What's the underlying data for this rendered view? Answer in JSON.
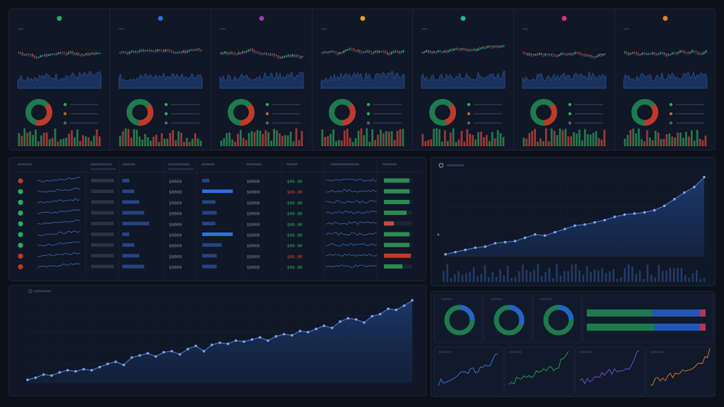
{
  "top_cards": [
    {
      "dot": "#27ae60"
    },
    {
      "dot": "#2f6fd6"
    },
    {
      "dot": "#8e44ad"
    },
    {
      "dot": "#e0a020"
    },
    {
      "dot": "#1abc9c"
    },
    {
      "dot": "#d63384"
    },
    {
      "dot": "#e67e22"
    }
  ],
  "table": {
    "columns": [
      "",
      "",
      "",
      "",
      "",
      "",
      "",
      ""
    ],
    "rows": [
      {
        "status": "red",
        "value": "$0000",
        "value2": "$0000",
        "change": "$00.00",
        "change_color": "green",
        "bar": 0.9,
        "bar2": 0.0,
        "bar_color": "#2e8b57",
        "alloc": 0.0
      },
      {
        "status": "green",
        "value": "$0000",
        "value2": "$0000",
        "change": "$00.00",
        "change_color": "red",
        "bar": 0.9,
        "bar2": 0.95,
        "bar_color": "#2e8b57",
        "alloc": 0.75
      },
      {
        "status": "green",
        "value": "$0000",
        "value2": "$0000",
        "change": "$00.00",
        "change_color": "green",
        "bar": 0.9,
        "bar2": 0.25,
        "bar_color": "#2e8b57",
        "alloc": 0.5
      },
      {
        "status": "green",
        "value": "$0000",
        "value2": "$0000",
        "change": "$00.00",
        "change_color": "green",
        "bar": 0.8,
        "bar2": 0.3,
        "bar_color": "#2e8b57",
        "alloc": 0.0
      },
      {
        "status": "green",
        "value": "$0000",
        "value2": "$0000",
        "change": "$00.00",
        "change_color": "green",
        "bar": 0.35,
        "bar2": 0.25,
        "bar_color": "#c0503a",
        "alloc": 0.9
      },
      {
        "status": "green",
        "value": "$0000",
        "value2": "$0000",
        "change": "$00.00",
        "change_color": "green",
        "bar": 0.9,
        "bar2": 0.95,
        "bar_color": "#2e8b57",
        "alloc": 0.0
      },
      {
        "status": "green",
        "value": "$0000",
        "value2": "$0000",
        "change": "$00.00",
        "change_color": "green",
        "bar": 0.9,
        "bar2": 0.5,
        "bar_color": "#2e8b57",
        "alloc": 0.5
      },
      {
        "status": "red",
        "value": "$0000",
        "value2": "$0000",
        "change": "$00.00",
        "change_color": "red",
        "bar": 0.95,
        "bar2": 0.3,
        "bar_color": "#c0392b",
        "alloc": 0.6
      },
      {
        "status": "red",
        "value": "$0000",
        "value2": "$0000",
        "change": "$00.00",
        "change_color": "green",
        "bar": 0.65,
        "bar2": 0.3,
        "bar_color": "#2e8b57",
        "alloc": 0.6
      }
    ]
  },
  "right_chart": {
    "values": [
      2,
      4,
      6,
      8,
      9,
      12,
      13,
      14,
      17,
      20,
      19,
      22,
      25,
      28,
      29,
      31,
      33,
      36,
      38,
      39,
      40,
      42,
      46,
      52,
      58,
      63,
      72
    ]
  },
  "bottom_chart": {
    "y_ticks": [
      "",
      "",
      "",
      "",
      "",
      ""
    ],
    "x_ticks": [
      "",
      "",
      "",
      "",
      "",
      "",
      "",
      "",
      "",
      "",
      "",
      "",
      "",
      "",
      "",
      "",
      "",
      "",
      "",
      ""
    ],
    "values": [
      3,
      5,
      8,
      7,
      10,
      12,
      11,
      13,
      12,
      15,
      18,
      20,
      17,
      24,
      26,
      28,
      25,
      29,
      30,
      27,
      32,
      35,
      30,
      36,
      38,
      37,
      40,
      39,
      41,
      43,
      40,
      44,
      46,
      45,
      49,
      48,
      51,
      54,
      52,
      58,
      61,
      60,
      57,
      63,
      65,
      70,
      69,
      73,
      78
    ]
  },
  "donuts": [
    {
      "segments": [
        0.25,
        0.75
      ],
      "colors": [
        "#2563c9",
        "#1f7a4d"
      ]
    },
    {
      "segments": [
        0.3,
        0.7
      ],
      "colors": [
        "#2563c9",
        "#1f7a4d"
      ]
    },
    {
      "segments": [
        0.25,
        0.75
      ],
      "colors": [
        "#2563c9",
        "#1f7a4d"
      ]
    }
  ],
  "stacked_bars": [
    {
      "segments": [
        0.55,
        0.4,
        0.05
      ],
      "colors": [
        "#1f7a4d",
        "#2455b8",
        "#a83a5c"
      ]
    },
    {
      "segments": [
        0.57,
        0.38,
        0.05
      ],
      "colors": [
        "#1f7a4d",
        "#2455b8",
        "#a83a5c"
      ]
    }
  ],
  "sparks": [
    {
      "color": "#3a7bd5"
    },
    {
      "color": "#2e9e5e"
    },
    {
      "color": "#7b4fd6"
    },
    {
      "color": "#e07a2c"
    }
  ]
}
